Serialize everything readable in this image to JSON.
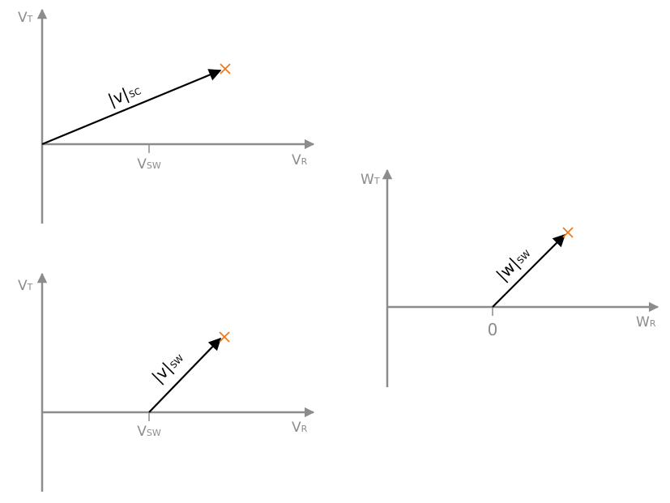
{
  "colors": {
    "axis": "#8c8c8c",
    "vector": "#000000",
    "marker": "#f07818"
  },
  "panel_top_left": {
    "y_axis": {
      "main": "V",
      "sub": "T"
    },
    "x_axis": {
      "main": "V",
      "sub": "R"
    },
    "tick": {
      "main": "V",
      "sub": "SW"
    },
    "vector": {
      "main": "|v|",
      "sub": "SC"
    }
  },
  "panel_bottom_left": {
    "y_axis": {
      "main": "V",
      "sub": "T"
    },
    "x_axis": {
      "main": "V",
      "sub": "R"
    },
    "tick": {
      "main": "V",
      "sub": "SW"
    },
    "vector": {
      "main": "|v|",
      "sub": "SW"
    }
  },
  "panel_right": {
    "y_axis": {
      "main": "W",
      "sub": "T"
    },
    "x_axis": {
      "main": "W",
      "sub": "R"
    },
    "tick": {
      "main": "0"
    },
    "vector": {
      "main": "|w|",
      "sub": "SW"
    }
  }
}
